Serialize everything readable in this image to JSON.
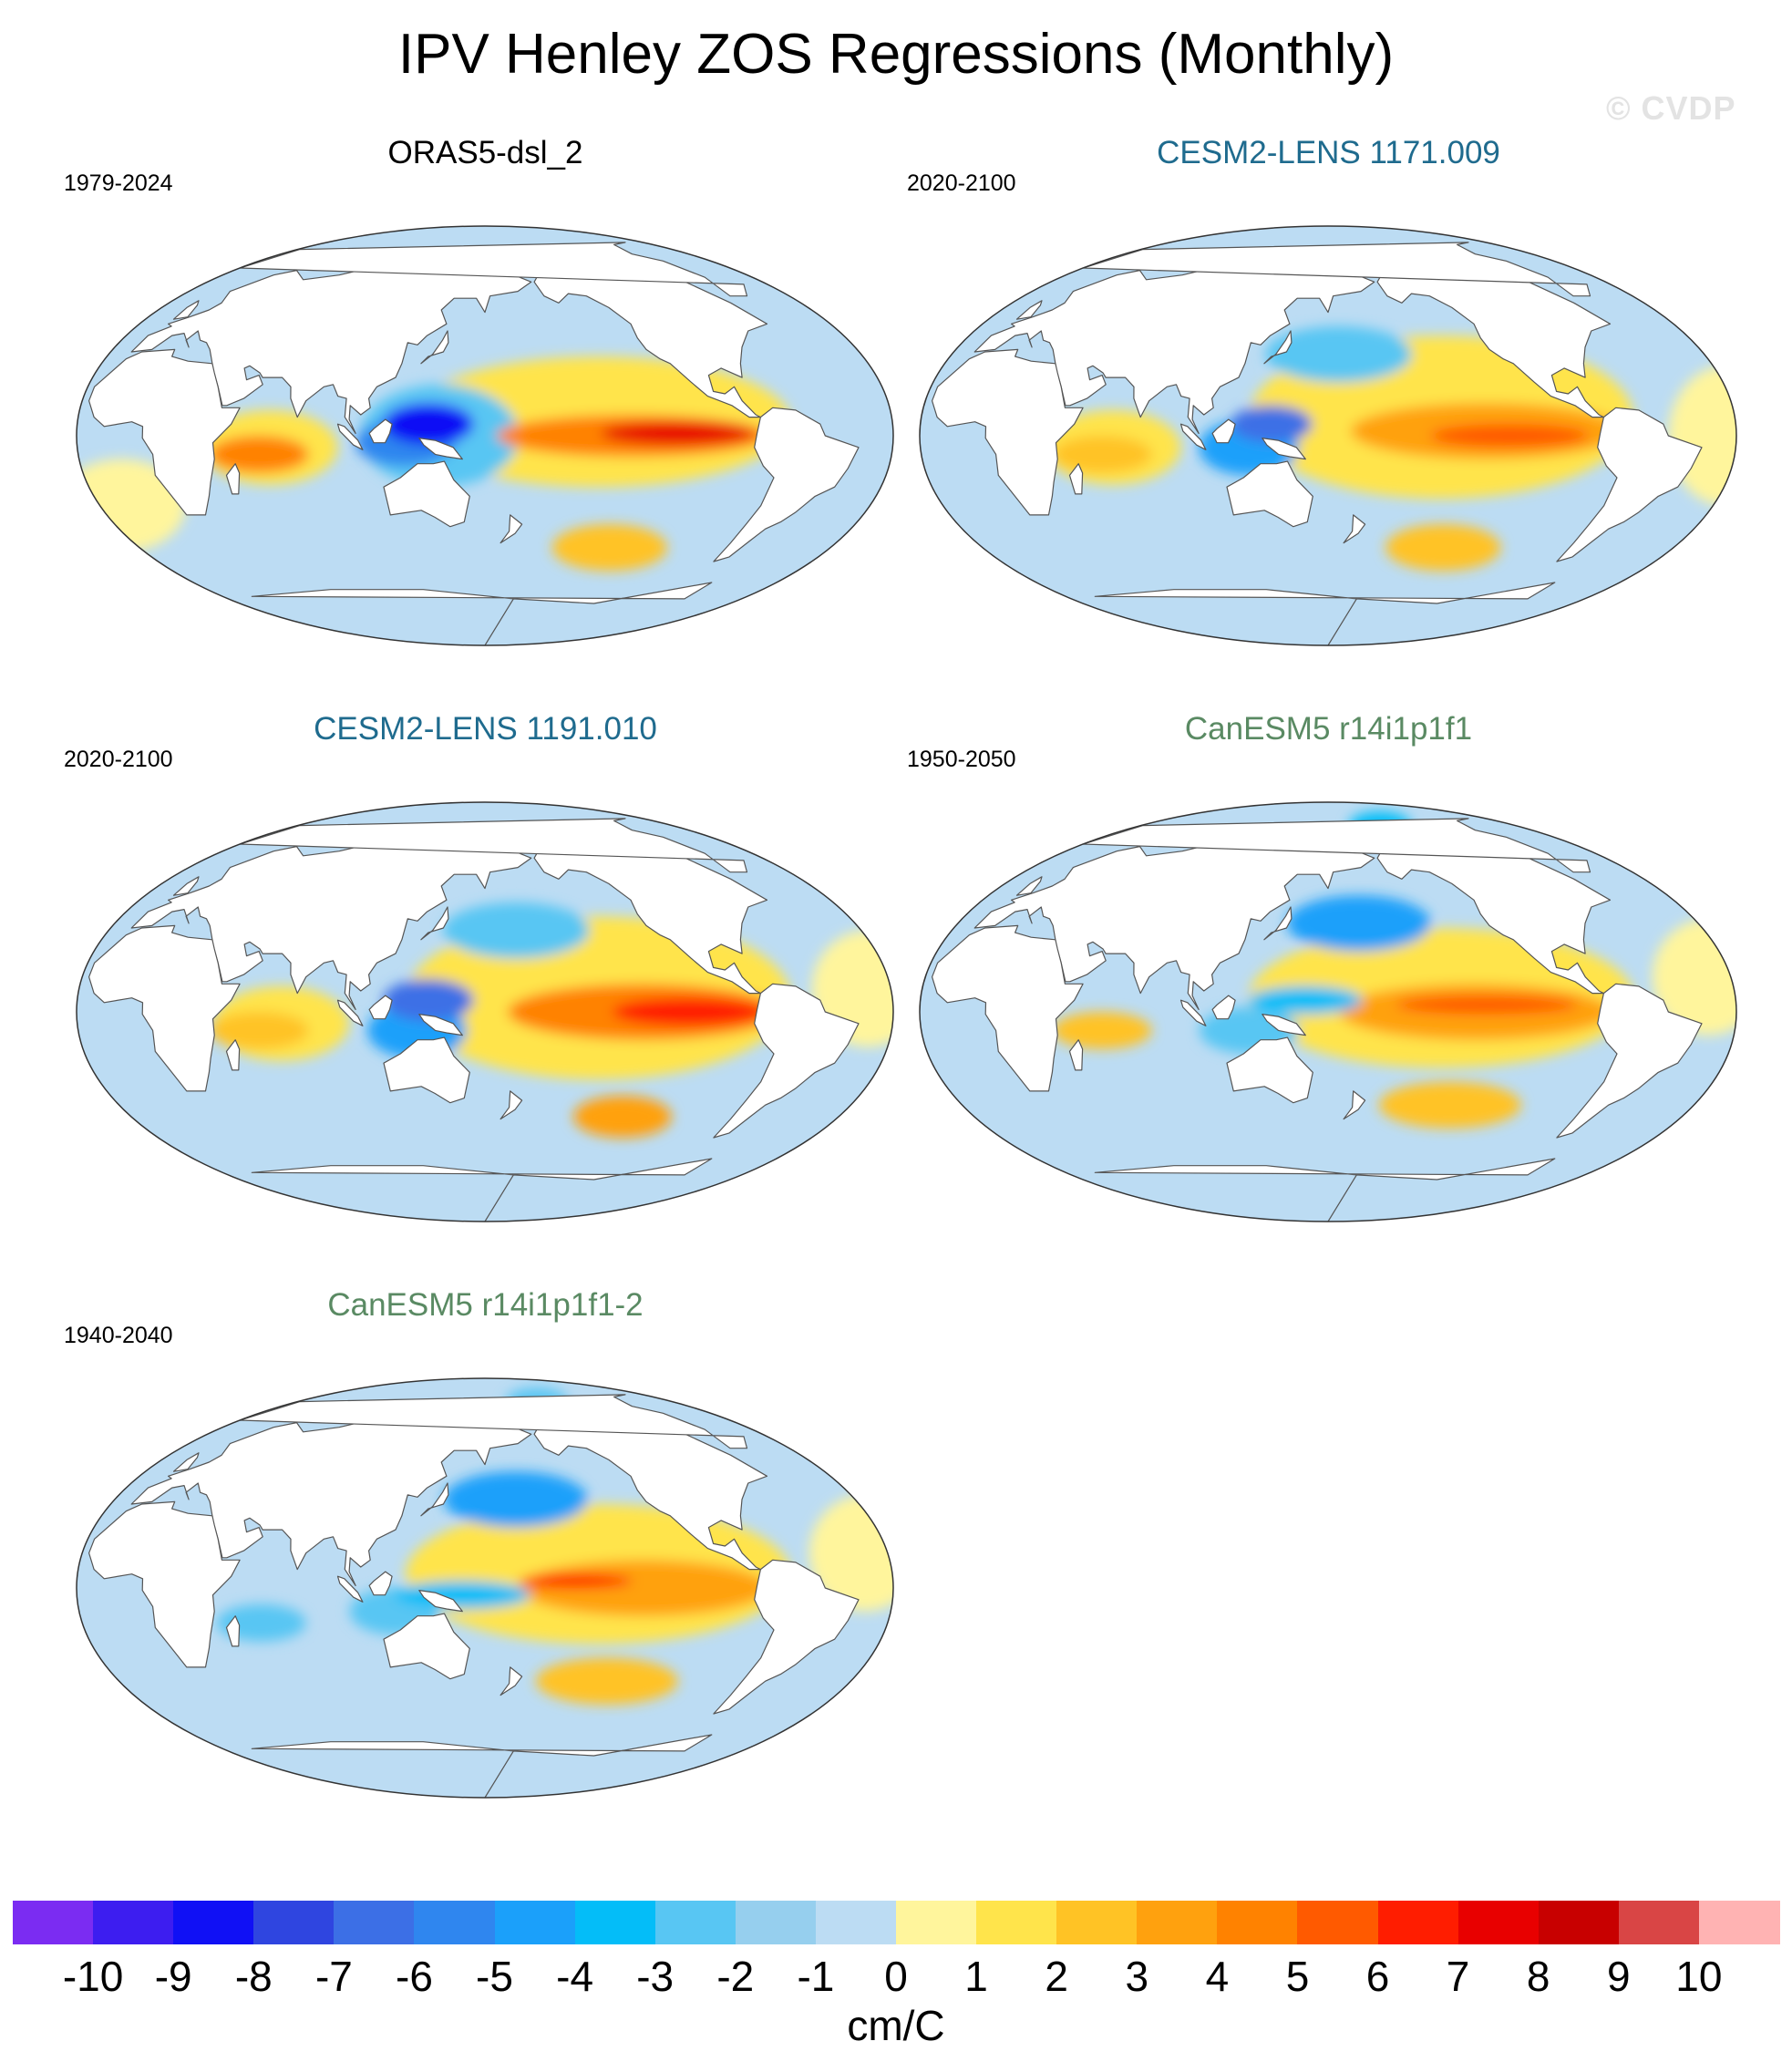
{
  "figure": {
    "title": "IPV Henley ZOS Regressions (Monthly)",
    "watermark": "© CVDP"
  },
  "palette": {
    "land": "#ffffff",
    "coast": "#555555",
    "base_ocean": "#bcdcf3",
    "colors": [
      "#7b2cf2",
      "#3d1df0",
      "#1010f5",
      "#2f45e0",
      "#3c6fe6",
      "#2f86ef",
      "#1ba0fa",
      "#04bdf8",
      "#58c6f3",
      "#96cfee",
      "#bcdcf3",
      "#fff59c",
      "#ffe44b",
      "#ffc325",
      "#ffa10e",
      "#ff8200",
      "#ff5a00",
      "#ff1d00",
      "#e80000",
      "#c80000",
      "#d94545",
      "#ffb3b3"
    ]
  },
  "chart_data": {
    "type": "contour-map",
    "projection": "Robinson",
    "variable": "ZOS regression on IPV Henley index",
    "units": "cm/C",
    "colorbar": {
      "levels": [
        -10,
        -9,
        -8,
        -7,
        -6,
        -5,
        -4,
        -3,
        -2,
        -1,
        0,
        1,
        2,
        3,
        4,
        5,
        6,
        7,
        8,
        9,
        10
      ],
      "labels": [
        "-10",
        "-9",
        "-8",
        "-7",
        "-6",
        "-5",
        "-4",
        "-3",
        "-2",
        "-1",
        "0",
        "1",
        "2",
        "3",
        "4",
        "5",
        "6",
        "7",
        "8",
        "9",
        "10"
      ],
      "units_label": "cm/C"
    },
    "panels": [
      {
        "title": "ORAS5-dsl_2",
        "period": "1979-2024",
        "title_color": "#000000",
        "features": [
          {
            "region": "equatorial eastern Pacific",
            "lon": -115,
            "lat": 1,
            "dlon": 34,
            "dlat": 5,
            "value": 7.5
          },
          {
            "region": "eastern Pacific tongue",
            "lon": -135,
            "lat": 0,
            "dlon": 60,
            "dlat": 9,
            "value": 4.5
          },
          {
            "region": "eastern Pacific broad",
            "lon": -150,
            "lat": 6,
            "dlon": 85,
            "dlat": 28,
            "value": 1.5
          },
          {
            "region": "western tropical Pacific",
            "lon": 135,
            "lat": 5,
            "dlon": 20,
            "dlat": 9,
            "value": -8.5
          },
          {
            "region": "Maritime Continent",
            "lon": 125,
            "lat": -3,
            "dlon": 22,
            "dlat": 10,
            "value": -6.0
          },
          {
            "region": "western Pacific broad",
            "lon": 140,
            "lat": 0,
            "dlon": 35,
            "dlat": 22,
            "value": -3.0
          },
          {
            "region": "western Indian Ocean",
            "lon": 60,
            "lat": -8,
            "dlon": 22,
            "dlat": 8,
            "value": 4.0
          },
          {
            "region": "Indian Ocean broad",
            "lon": 65,
            "lat": -5,
            "dlon": 30,
            "dlat": 16,
            "value": 1.5
          },
          {
            "region": "South Pacific",
            "lon": -135,
            "lat": -48,
            "dlon": 30,
            "dlat": 10,
            "value": 2.0
          },
          {
            "region": "South Atlantic",
            "lon": -10,
            "lat": -30,
            "dlon": 30,
            "dlat": 20,
            "value": 0.5
          }
        ]
      },
      {
        "title": "CESM2-LENS 1171.009",
        "period": "2020-2100",
        "title_color": "#1f6b8e",
        "features": [
          {
            "region": "equatorial eastern Pacific",
            "lon": -120,
            "lat": 0,
            "dlon": 35,
            "dlat": 5,
            "value": 5.5
          },
          {
            "region": "eastern Pacific tongue",
            "lon": -130,
            "lat": 2,
            "dlon": 60,
            "dlat": 12,
            "value": 3.5
          },
          {
            "region": "eastern Pacific broad",
            "lon": -150,
            "lat": 8,
            "dlon": 85,
            "dlat": 35,
            "value": 1.5
          },
          {
            "region": "western tropical Pacific",
            "lon": 135,
            "lat": 5,
            "dlon": 18,
            "dlat": 8,
            "value": -6.5
          },
          {
            "region": "Maritime Continent",
            "lon": 125,
            "lat": -5,
            "dlon": 22,
            "dlat": 12,
            "value": -4.5
          },
          {
            "region": "North Pacific",
            "lon": 165,
            "lat": 35,
            "dlon": 35,
            "dlat": 12,
            "value": -2.5
          },
          {
            "region": "western Indian Ocean",
            "lon": 60,
            "lat": -8,
            "dlon": 22,
            "dlat": 8,
            "value": 2.5
          },
          {
            "region": "Indian Ocean broad",
            "lon": 65,
            "lat": -5,
            "dlon": 30,
            "dlat": 16,
            "value": 1.2
          },
          {
            "region": "South Pacific",
            "lon": -140,
            "lat": -48,
            "dlon": 30,
            "dlat": 10,
            "value": 2.0
          },
          {
            "region": "Atlantic",
            "lon": -25,
            "lat": 0,
            "dlon": 25,
            "dlat": 30,
            "value": 0.5
          }
        ]
      },
      {
        "title": "CESM2-LENS 1191.010",
        "period": "2020-2100",
        "title_color": "#1f6b8e",
        "features": [
          {
            "region": "equatorial eastern Pacific",
            "lon": -110,
            "lat": 0,
            "dlon": 34,
            "dlat": 6,
            "value": 6.5
          },
          {
            "region": "eastern Pacific tongue",
            "lon": -130,
            "lat": 0,
            "dlon": 60,
            "dlat": 12,
            "value": 4.0
          },
          {
            "region": "eastern Pacific broad",
            "lon": -150,
            "lat": 6,
            "dlon": 85,
            "dlat": 35,
            "value": 1.5
          },
          {
            "region": "western tropical Pacific",
            "lon": 135,
            "lat": 5,
            "dlon": 20,
            "dlat": 9,
            "value": -7.0
          },
          {
            "region": "Maritime Continent",
            "lon": 130,
            "lat": -8,
            "dlon": 22,
            "dlat": 12,
            "value": -5.0
          },
          {
            "region": "North Pacific",
            "lon": 175,
            "lat": 35,
            "dlon": 35,
            "dlat": 12,
            "value": -2.5
          },
          {
            "region": "western Indian Ocean",
            "lon": 60,
            "lat": -8,
            "dlon": 22,
            "dlat": 8,
            "value": 2.5
          },
          {
            "region": "Indian Ocean broad",
            "lon": 70,
            "lat": -5,
            "dlon": 30,
            "dlat": 16,
            "value": 1.2
          },
          {
            "region": "South Pacific",
            "lon": -130,
            "lat": -45,
            "dlon": 25,
            "dlat": 9,
            "value": 3.0
          },
          {
            "region": "Atlantic",
            "lon": -30,
            "lat": 10,
            "dlon": 25,
            "dlat": 25,
            "value": 0.5
          }
        ]
      },
      {
        "title": "CanESM5 r14i1p1f1",
        "period": "1950-2050",
        "title_color": "#5a8a63",
        "features": [
          {
            "region": "equatorial eastern Pacific",
            "lon": -130,
            "lat": 3,
            "dlon": 40,
            "dlat": 4,
            "value": 5.5
          },
          {
            "region": "eastern Pacific tongue",
            "lon": -135,
            "lat": 0,
            "dlon": 60,
            "dlat": 12,
            "value": 3.0
          },
          {
            "region": "eastern Pacific broad",
            "lon": -150,
            "lat": 6,
            "dlon": 85,
            "dlat": 30,
            "value": 1.5
          },
          {
            "region": "western tropical Pacific",
            "lon": 150,
            "lat": 5,
            "dlon": 25,
            "dlat": 6,
            "value": -4.0
          },
          {
            "region": "North Pacific",
            "lon": 175,
            "lat": 38,
            "dlon": 35,
            "dlat": 12,
            "value": -4.5
          },
          {
            "region": "Maritime Continent",
            "lon": 125,
            "lat": -8,
            "dlon": 22,
            "dlat": 10,
            "value": -3.0
          },
          {
            "region": "Arctic",
            "lon": -150,
            "lat": 80,
            "dlon": 30,
            "dlat": 6,
            "value": -4.0
          },
          {
            "region": "western Indian Ocean",
            "lon": 60,
            "lat": -8,
            "dlon": 22,
            "dlat": 8,
            "value": 2.0
          },
          {
            "region": "South Pacific",
            "lon": -140,
            "lat": -40,
            "dlon": 35,
            "dlat": 10,
            "value": 2.0
          },
          {
            "region": "Atlantic",
            "lon": -30,
            "lat": 15,
            "dlon": 25,
            "dlat": 25,
            "value": 0.5
          }
        ]
      },
      {
        "title": "CanESM5 r14i1p1f1-2",
        "period": "1940-2040",
        "title_color": "#5a8a63",
        "features": [
          {
            "region": "equatorial eastern Pacific",
            "lon": -160,
            "lat": 3,
            "dlon": 25,
            "dlat": 3,
            "value": 6.0
          },
          {
            "region": "eastern Pacific tongue",
            "lon": -130,
            "lat": 0,
            "dlon": 55,
            "dlat": 12,
            "value": 3.5
          },
          {
            "region": "eastern Pacific broad",
            "lon": -150,
            "lat": 6,
            "dlon": 85,
            "dlat": 30,
            "value": 1.5
          },
          {
            "region": "North Pacific",
            "lon": 175,
            "lat": 38,
            "dlon": 35,
            "dlat": 12,
            "value": -4.5
          },
          {
            "region": "western tropical Pacific",
            "lon": 150,
            "lat": -3,
            "dlon": 30,
            "dlat": 6,
            "value": -3.5
          },
          {
            "region": "Maritime Continent",
            "lon": 120,
            "lat": -10,
            "dlon": 20,
            "dlat": 10,
            "value": -3.0
          },
          {
            "region": "Arctic",
            "lon": -150,
            "lat": 80,
            "dlon": 30,
            "dlat": 6,
            "value": -3.0
          },
          {
            "region": "western Indian Ocean",
            "lon": 60,
            "lat": -15,
            "dlon": 20,
            "dlat": 8,
            "value": -3.0
          },
          {
            "region": "South Pacific",
            "lon": -140,
            "lat": -40,
            "dlon": 35,
            "dlat": 10,
            "value": 2.0
          },
          {
            "region": "Atlantic",
            "lon": -30,
            "lat": 15,
            "dlon": 25,
            "dlat": 25,
            "value": 0.5
          }
        ]
      }
    ]
  }
}
